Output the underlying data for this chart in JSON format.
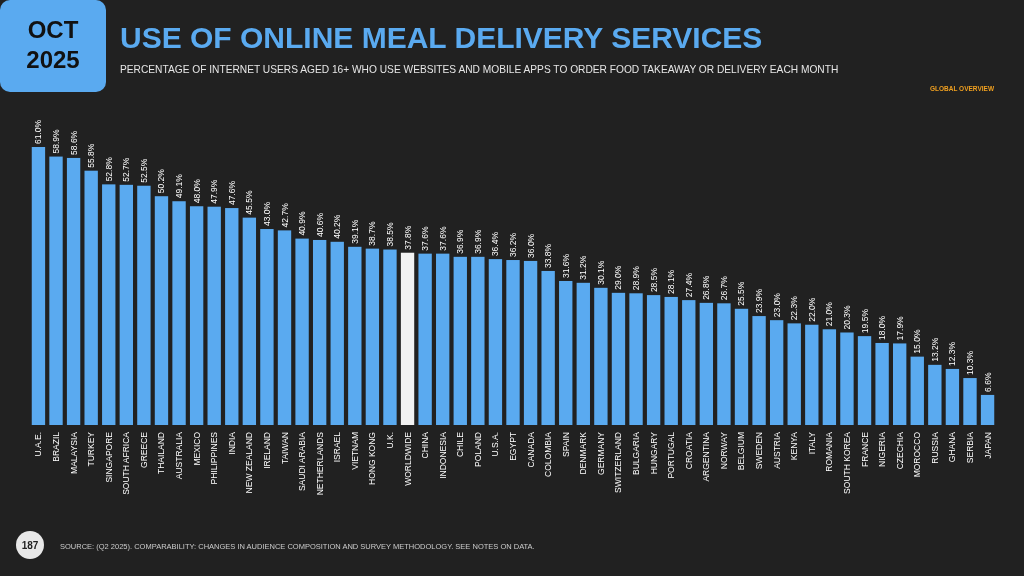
{
  "chart_data": {
    "type": "bar",
    "title": "USE OF ONLINE MEAL DELIVERY SERVICES",
    "subtitle": "PERCENTAGE OF INTERNET USERS AGED 16+ WHO USE WEBSITES AND MOBILE APPS TO ORDER FOOD TAKEAWAY OR DELIVERY EACH MONTH",
    "categories": [
      "U.A.E.",
      "BRAZIL",
      "MALAYSIA",
      "TURKEY",
      "SINGAPORE",
      "SOUTH AFRICA",
      "GREECE",
      "THAILAND",
      "AUSTRALIA",
      "MEXICO",
      "PHILIPPINES",
      "INDIA",
      "NEW ZEALAND",
      "IRELAND",
      "TAIWAN",
      "SAUDI ARABIA",
      "NETHERLANDS",
      "ISRAEL",
      "VIETNAM",
      "HONG KONG",
      "U.K.",
      "WORLDWIDE",
      "CHINA",
      "INDONESIA",
      "CHILE",
      "POLAND",
      "U.S.A.",
      "EGYPT",
      "CANADA",
      "COLOMBIA",
      "SPAIN",
      "DENMARK",
      "GERMANY",
      "SWITZERLAND",
      "BULGARIA",
      "HUNGARY",
      "PORTUGAL",
      "CROATIA",
      "ARGENTINA",
      "NORWAY",
      "BELGIUM",
      "SWEDEN",
      "AUSTRIA",
      "KENYA",
      "ITALY",
      "ROMANIA",
      "SOUTH KOREA",
      "FRANCE",
      "NIGERIA",
      "CZECHIA",
      "MOROCCO",
      "RUSSIA",
      "GHANA",
      "SERBIA",
      "JAPAN"
    ],
    "values": [
      61.0,
      58.9,
      58.6,
      55.8,
      52.8,
      52.7,
      52.5,
      50.2,
      49.1,
      48.0,
      47.9,
      47.6,
      45.5,
      43.0,
      42.7,
      40.9,
      40.6,
      40.2,
      39.1,
      38.7,
      38.5,
      37.8,
      37.6,
      37.6,
      36.9,
      36.9,
      36.4,
      36.2,
      36.0,
      33.8,
      31.6,
      31.2,
      30.1,
      29.0,
      28.9,
      28.5,
      28.1,
      27.4,
      26.8,
      26.7,
      25.5,
      23.9,
      23.0,
      22.3,
      22.0,
      21.0,
      20.3,
      19.5,
      18.0,
      17.9,
      15.0,
      13.2,
      12.3,
      10.3,
      6.6
    ],
    "value_labels": [
      "61.0%",
      "58.9%",
      "58.6%",
      "55.8%",
      "52.8%",
      "52.7%",
      "52.5%",
      "50.2%",
      "49.1%",
      "48.0%",
      "47.9%",
      "47.6%",
      "45.5%",
      "43.0%",
      "42.7%",
      "40.9%",
      "40.6%",
      "40.2%",
      "39.1%",
      "38.7%",
      "38.5%",
      "37.8%",
      "37.6%",
      "37.6%",
      "36.9%",
      "36.9%",
      "36.4%",
      "36.2%",
      "36.0%",
      "33.8%",
      "31.6%",
      "31.2%",
      "30.1%",
      "29.0%",
      "28.9%",
      "28.5%",
      "28.1%",
      "27.4%",
      "26.8%",
      "26.7%",
      "25.5%",
      "23.9%",
      "23.0%",
      "22.3%",
      "22.0%",
      "21.0%",
      "20.3%",
      "19.5%",
      "18.0%",
      "17.9%",
      "15.0%",
      "13.2%",
      "12.3%",
      "10.3%",
      "6.6%"
    ],
    "colors": [
      "#5aaaf0",
      "#5aaaf0",
      "#5aaaf0",
      "#5aaaf0",
      "#5aaaf0",
      "#5aaaf0",
      "#5aaaf0",
      "#5aaaf0",
      "#5aaaf0",
      "#5aaaf0",
      "#5aaaf0",
      "#5aaaf0",
      "#5aaaf0",
      "#5aaaf0",
      "#5aaaf0",
      "#5aaaf0",
      "#5aaaf0",
      "#5aaaf0",
      "#5aaaf0",
      "#5aaaf0",
      "#5aaaf0",
      "#f2f2f2",
      "#5aaaf0",
      "#5aaaf0",
      "#5aaaf0",
      "#5aaaf0",
      "#5aaaf0",
      "#5aaaf0",
      "#5aaaf0",
      "#5aaaf0",
      "#5aaaf0",
      "#5aaaf0",
      "#5aaaf0",
      "#5aaaf0",
      "#5aaaf0",
      "#5aaaf0",
      "#5aaaf0",
      "#5aaaf0",
      "#5aaaf0",
      "#5aaaf0",
      "#5aaaf0",
      "#5aaaf0",
      "#5aaaf0",
      "#5aaaf0",
      "#5aaaf0",
      "#5aaaf0",
      "#5aaaf0",
      "#5aaaf0",
      "#5aaaf0",
      "#5aaaf0",
      "#5aaaf0",
      "#5aaaf0",
      "#5aaaf0",
      "#5aaaf0",
      "#5aaaf0"
    ],
    "annotations": [
      "OCT 2025",
      "GLOBAL OVERVIEW",
      "187",
      "SOURCE: (Q2 2025). COMPARABILITY: CHANGES IN AUDIENCE COMPOSITION AND SURVEY METHODOLOGY. SEE NOTES ON DATA."
    ]
  }
}
